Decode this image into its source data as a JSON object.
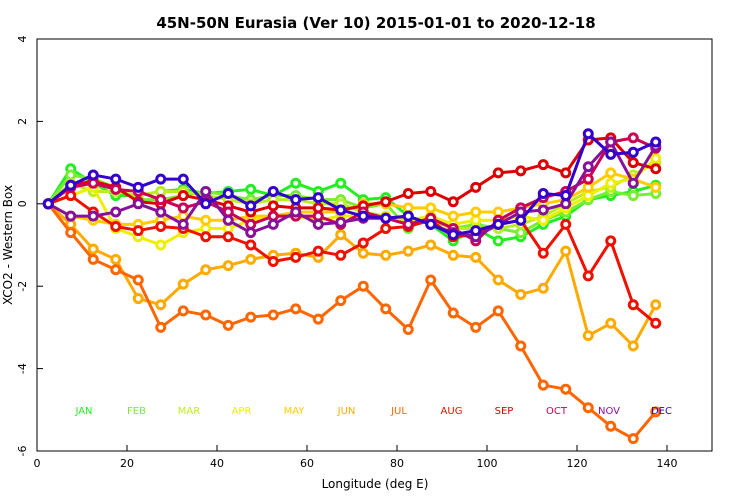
{
  "chart_data": {
    "type": "line",
    "title": "45N-50N Eurasia (Ver 10)   2015-01-01 to 2020-12-18",
    "xlabel": "Longitude (deg E)",
    "ylabel": "XCO2 - Western Box",
    "xlim": [
      0,
      150
    ],
    "ylim": [
      -6,
      4
    ],
    "x_ticks": [
      0,
      20,
      40,
      60,
      80,
      100,
      120,
      140
    ],
    "y_ticks": [
      -6,
      -4,
      -2,
      0,
      2,
      4
    ],
    "grid": false,
    "x": [
      2.5,
      7.5,
      12.5,
      17.5,
      22.5,
      27.5,
      32.5,
      37.5,
      42.5,
      47.5,
      52.5,
      57.5,
      62.5,
      67.5,
      72.5,
      77.5,
      82.5,
      87.5,
      92.5,
      97.5,
      102.5,
      107.5,
      112.5,
      117.5,
      122.5,
      127.5,
      132.5,
      137.5
    ],
    "series": [
      {
        "name": "JAN",
        "color": "#22ee22",
        "values": [
          0.0,
          0.85,
          0.5,
          0.2,
          0.2,
          0.3,
          0.35,
          0.25,
          0.3,
          0.35,
          0.2,
          0.5,
          0.3,
          0.5,
          0.1,
          0.15,
          -0.3,
          -0.5,
          -0.9,
          -0.6,
          -0.9,
          -0.8,
          -0.5,
          -0.3,
          0.1,
          0.2,
          0.3,
          0.45
        ]
      },
      {
        "name": "FEB",
        "color": "#77ee33",
        "values": [
          0.0,
          0.7,
          0.6,
          0.4,
          0.1,
          0.1,
          0.2,
          0.3,
          0.2,
          0.1,
          0.2,
          0.2,
          0.1,
          0.1,
          -0.1,
          0.0,
          -0.6,
          -0.3,
          -0.6,
          -0.5,
          -0.6,
          -0.7,
          -0.4,
          -0.2,
          0.1,
          0.3,
          0.2,
          0.25
        ]
      },
      {
        "name": "MAR",
        "color": "#bbee22",
        "values": [
          0.0,
          0.5,
          0.3,
          0.3,
          0.2,
          0.3,
          0.3,
          0.2,
          0.1,
          0.0,
          0.1,
          0.1,
          0.0,
          0.0,
          -0.2,
          -0.3,
          -0.4,
          -0.4,
          -0.6,
          -0.6,
          -0.6,
          -0.5,
          -0.3,
          0.0,
          0.3,
          0.4,
          0.7,
          1.0
        ]
      },
      {
        "name": "APR",
        "color": "#eeee00",
        "values": [
          0.0,
          0.2,
          0.4,
          -0.6,
          -0.8,
          -1.0,
          -0.7,
          -0.6,
          -0.6,
          -0.4,
          -0.3,
          -0.3,
          -0.4,
          -0.3,
          -0.3,
          -0.3,
          -0.4,
          -0.3,
          -0.5,
          -0.4,
          -0.4,
          -0.3,
          -0.4,
          -0.1,
          0.2,
          0.5,
          0.6,
          1.1
        ]
      },
      {
        "name": "MAY",
        "color": "#ffcc00",
        "values": [
          0.0,
          -0.3,
          -0.4,
          -0.5,
          -0.5,
          -0.4,
          -0.3,
          -0.4,
          -0.4,
          -0.3,
          -0.3,
          -0.2,
          -0.2,
          -0.2,
          0.0,
          0.0,
          -0.1,
          -0.1,
          -0.3,
          -0.2,
          -0.2,
          -0.1,
          0.0,
          0.1,
          0.4,
          0.75,
          0.6,
          0.4
        ]
      },
      {
        "name": "JUN",
        "color": "#ffaa00",
        "values": [
          0.0,
          -0.5,
          -1.1,
          -1.35,
          -2.3,
          -2.45,
          -1.95,
          -1.6,
          -1.5,
          -1.35,
          -1.25,
          -1.2,
          -1.3,
          -0.75,
          -1.2,
          -1.25,
          -1.15,
          -1.0,
          -1.25,
          -1.3,
          -1.85,
          -2.2,
          -2.05,
          -1.15,
          -3.2,
          -2.9,
          -3.45,
          -2.45
        ]
      },
      {
        "name": "JUL",
        "color": "#ff6600",
        "values": [
          0.0,
          -0.7,
          -1.35,
          -1.6,
          -1.85,
          -3.0,
          -2.6,
          -2.7,
          -2.95,
          -2.75,
          -2.7,
          -2.55,
          -2.8,
          -2.35,
          -2.0,
          -2.55,
          -3.05,
          -1.85,
          -2.65,
          -3.0,
          -2.6,
          -3.45,
          -4.4,
          -4.5,
          -4.95,
          -5.4,
          -5.7,
          -5.05
        ]
      },
      {
        "name": "AUG",
        "color": "#ee1100",
        "values": [
          0.0,
          0.2,
          -0.2,
          -0.55,
          -0.65,
          -0.55,
          -0.6,
          -0.8,
          -0.8,
          -1.0,
          -1.4,
          -1.3,
          -1.15,
          -1.25,
          -0.95,
          -0.6,
          -0.55,
          -0.4,
          -0.8,
          -0.75,
          -0.5,
          -0.4,
          -1.2,
          -0.5,
          -1.75,
          -0.9,
          -2.45,
          -2.9
        ]
      },
      {
        "name": "SEP",
        "color": "#dd0000",
        "values": [
          0.0,
          0.45,
          0.55,
          0.4,
          0.05,
          0.0,
          0.2,
          0.1,
          -0.05,
          -0.2,
          -0.05,
          -0.1,
          -0.1,
          -0.15,
          -0.05,
          0.05,
          0.25,
          0.3,
          0.05,
          0.4,
          0.75,
          0.8,
          0.95,
          0.75,
          1.55,
          1.6,
          1.0,
          0.85
        ]
      },
      {
        "name": "OCT",
        "color": "#cc0055",
        "values": [
          0.0,
          0.4,
          0.5,
          0.35,
          0.3,
          0.1,
          -0.1,
          0.05,
          -0.2,
          -0.5,
          -0.3,
          -0.3,
          -0.3,
          -0.5,
          -0.2,
          -0.35,
          -0.5,
          -0.35,
          -0.6,
          -0.9,
          -0.4,
          -0.1,
          0.15,
          0.3,
          0.6,
          1.5,
          1.6,
          1.35
        ]
      },
      {
        "name": "NOV",
        "color": "#881199",
        "values": [
          0.0,
          -0.3,
          -0.3,
          -0.2,
          0.0,
          -0.2,
          -0.5,
          0.3,
          -0.4,
          -0.7,
          -0.5,
          -0.2,
          -0.5,
          -0.45,
          -0.35,
          -0.35,
          -0.3,
          -0.5,
          -0.7,
          -0.8,
          -0.5,
          -0.2,
          -0.15,
          0.0,
          0.9,
          1.5,
          0.5,
          1.4
        ]
      },
      {
        "name": "DEC",
        "color": "#3300cc",
        "values": [
          0.0,
          0.45,
          0.7,
          0.6,
          0.4,
          0.6,
          0.6,
          0.0,
          0.25,
          -0.05,
          0.3,
          0.1,
          0.15,
          -0.15,
          -0.3,
          -0.35,
          -0.3,
          -0.5,
          -0.75,
          -0.65,
          -0.5,
          -0.4,
          0.25,
          0.2,
          1.7,
          1.2,
          1.25,
          1.5
        ]
      }
    ],
    "legend": {
      "placement": "bottom",
      "labels": [
        "JAN",
        "FEB",
        "MAR",
        "APR",
        "MAY",
        "JUN",
        "JUL",
        "AUG",
        "SEP",
        "OCT",
        "NOV",
        "DEC"
      ]
    }
  }
}
